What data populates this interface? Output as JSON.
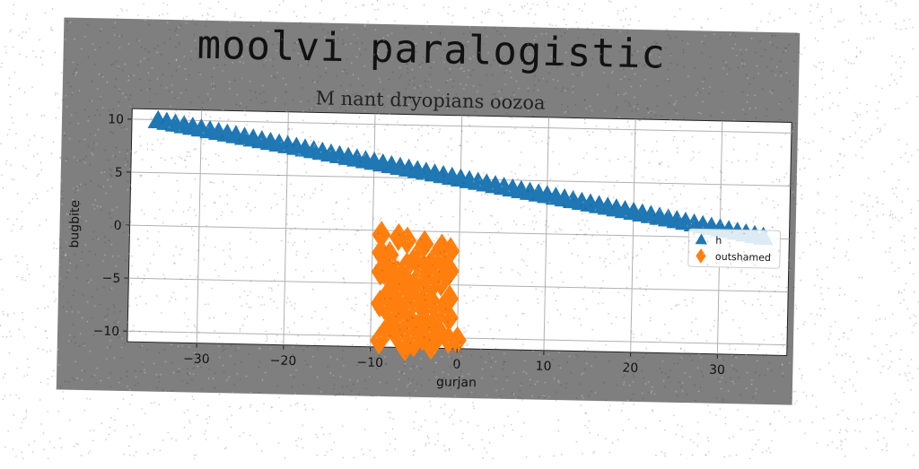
{
  "chart_data": {
    "type": "scatter",
    "title": "moolvi paralogistic",
    "subtitle": "M nant dryopians oozoa",
    "xlabel": "gurjan",
    "ylabel": "bugbite",
    "xlim": [
      -38,
      38
    ],
    "ylim": [
      -11,
      11
    ],
    "xticks": [
      -30,
      -20,
      -10,
      0,
      10,
      20,
      30
    ],
    "yticks": [
      -10,
      -5,
      0,
      5,
      10
    ],
    "grid": true,
    "legend_position": "right",
    "series": [
      {
        "name": "h",
        "marker": "triangle",
        "color": "#1f77b4",
        "x": [
          -35,
          -34,
          -33,
          -32,
          -31,
          -30,
          -29,
          -28,
          -27,
          -26,
          -25,
          -24,
          -23,
          -22,
          -21,
          -20,
          -19,
          -18,
          -17,
          -16,
          -15,
          -14,
          -13,
          -12,
          -11,
          -10,
          -9,
          -8,
          -7,
          -6,
          -5,
          -4,
          -3,
          -2,
          -1,
          0,
          1,
          2,
          3,
          4,
          5,
          6,
          7,
          8,
          9,
          10,
          11,
          12,
          13,
          14,
          15,
          16,
          17,
          18,
          19,
          20,
          21,
          22,
          23,
          24,
          25,
          26,
          27,
          28,
          29,
          30,
          31,
          32,
          33,
          34,
          35
        ],
        "y": [
          9.9,
          9.76,
          9.62,
          9.48,
          9.34,
          9.2,
          9.06,
          8.92,
          8.78,
          8.64,
          8.5,
          8.36,
          8.22,
          8.08,
          7.94,
          7.8,
          7.66,
          7.52,
          7.38,
          7.24,
          7.1,
          6.96,
          6.82,
          6.68,
          6.54,
          6.4,
          6.26,
          6.12,
          5.98,
          5.84,
          5.7,
          5.56,
          5.42,
          5.28,
          5.14,
          5.0,
          4.86,
          4.72,
          4.58,
          4.44,
          4.3,
          4.16,
          4.02,
          3.88,
          3.74,
          3.6,
          3.46,
          3.32,
          3.18,
          3.04,
          2.9,
          2.76,
          2.62,
          2.48,
          2.34,
          2.2,
          2.06,
          1.92,
          1.78,
          1.64,
          1.5,
          1.36,
          1.22,
          1.08,
          0.94,
          0.8,
          0.66,
          0.52,
          0.38,
          0.24,
          0.1
        ]
      },
      {
        "name": "outshamed",
        "marker": "diamond",
        "color": "#ff7f0e",
        "x": [
          -9,
          -7,
          -6,
          -4,
          -2,
          -1,
          -9,
          -8,
          -5,
          -3,
          -2,
          -8,
          -6,
          -4,
          -1,
          -9,
          -7,
          -3,
          -8,
          -6,
          -2,
          -5,
          -3,
          -7,
          -5,
          -4,
          -8,
          -6,
          -1,
          -5,
          -3,
          -9,
          -7,
          -4,
          -2,
          -8,
          -6,
          -1,
          -4,
          -7,
          -6,
          -3,
          -5,
          -8,
          -6,
          -2,
          -7,
          -4,
          -1,
          -9,
          -5,
          -3,
          -6,
          -8,
          -4,
          -1,
          -7,
          -5,
          -2,
          -6,
          0
        ],
        "y": [
          -0.4,
          -0.6,
          -0.9,
          -1.2,
          -1.5,
          -1.8,
          -2.1,
          -2.3,
          -2.6,
          -2.8,
          -3.0,
          -3.1,
          -3.3,
          -3.5,
          -3.7,
          -3.9,
          -4.1,
          -4.3,
          -4.5,
          -4.7,
          -4.8,
          -4.9,
          -5.1,
          -5.3,
          -5.5,
          -5.7,
          -5.9,
          -6.1,
          -6.3,
          -6.5,
          -6.7,
          -6.9,
          -7.1,
          -7.3,
          -7.5,
          -7.7,
          -7.9,
          -8.1,
          -8.3,
          -8.5,
          -8.7,
          -8.9,
          -9.0,
          -9.2,
          -9.4,
          -9.6,
          -9.8,
          -10.0,
          -10.2,
          -10.4,
          -10.6,
          -10.8,
          -11.0,
          -11.2,
          -11.4,
          -11.6,
          -11.8,
          -12.0,
          -12.2,
          -12.4,
          -10.2
        ]
      }
    ]
  }
}
